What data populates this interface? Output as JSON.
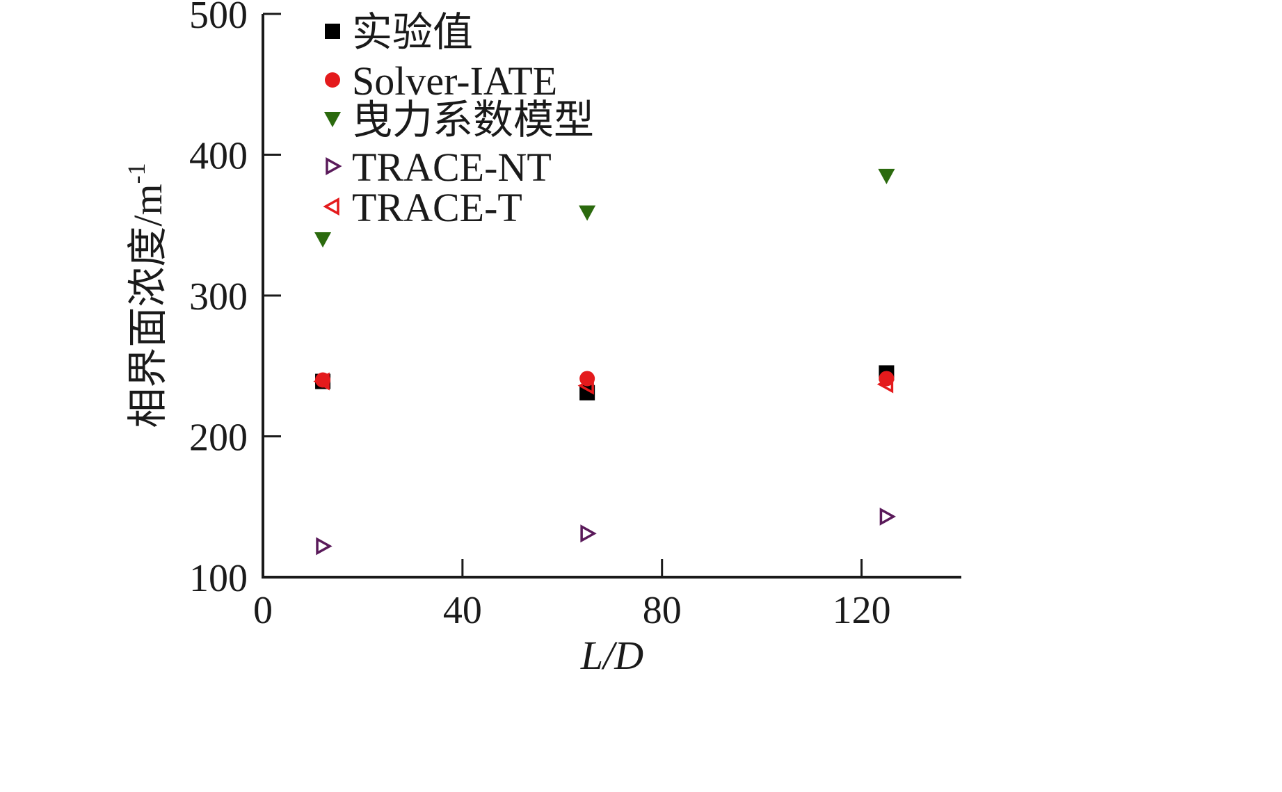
{
  "chart_data": {
    "type": "scatter",
    "xlabel": "L/D",
    "ylabel": "相界面浓度/m",
    "ylabel_superscript": "-1",
    "xlim": [
      0,
      140
    ],
    "ylim": [
      100,
      500
    ],
    "x_ticks": [
      0,
      40,
      80,
      120
    ],
    "y_ticks": [
      100,
      200,
      300,
      400,
      500
    ],
    "x_tick_labels": [
      "0",
      "40",
      "80",
      "120"
    ],
    "y_tick_labels": [
      "100",
      "200",
      "300",
      "400",
      "500"
    ],
    "grid": false,
    "legend_position": "top-left",
    "series": [
      {
        "name": "实验值",
        "marker": "square",
        "color": "#000000",
        "x": [
          12,
          65,
          125
        ],
        "y": [
          239,
          231,
          245
        ]
      },
      {
        "name": "Solver-IATE",
        "marker": "circle",
        "color": "#e41a1c",
        "x": [
          12,
          65,
          125
        ],
        "y": [
          240,
          241,
          241
        ]
      },
      {
        "name": "曳力系数模型",
        "marker": "triangle-down",
        "color": "#2b6a0e",
        "x": [
          12,
          65,
          125
        ],
        "y": [
          340,
          359,
          385
        ]
      },
      {
        "name": "TRACE-NT",
        "marker": "triangle-right-open",
        "color": "#5a1a5a",
        "x": [
          12,
          65,
          125
        ],
        "y": [
          122,
          131,
          143
        ]
      },
      {
        "name": "TRACE-T",
        "marker": "triangle-left-open",
        "color": "#e41a1c",
        "x": [
          12,
          65,
          125
        ],
        "y": [
          239,
          236,
          237
        ]
      }
    ]
  }
}
